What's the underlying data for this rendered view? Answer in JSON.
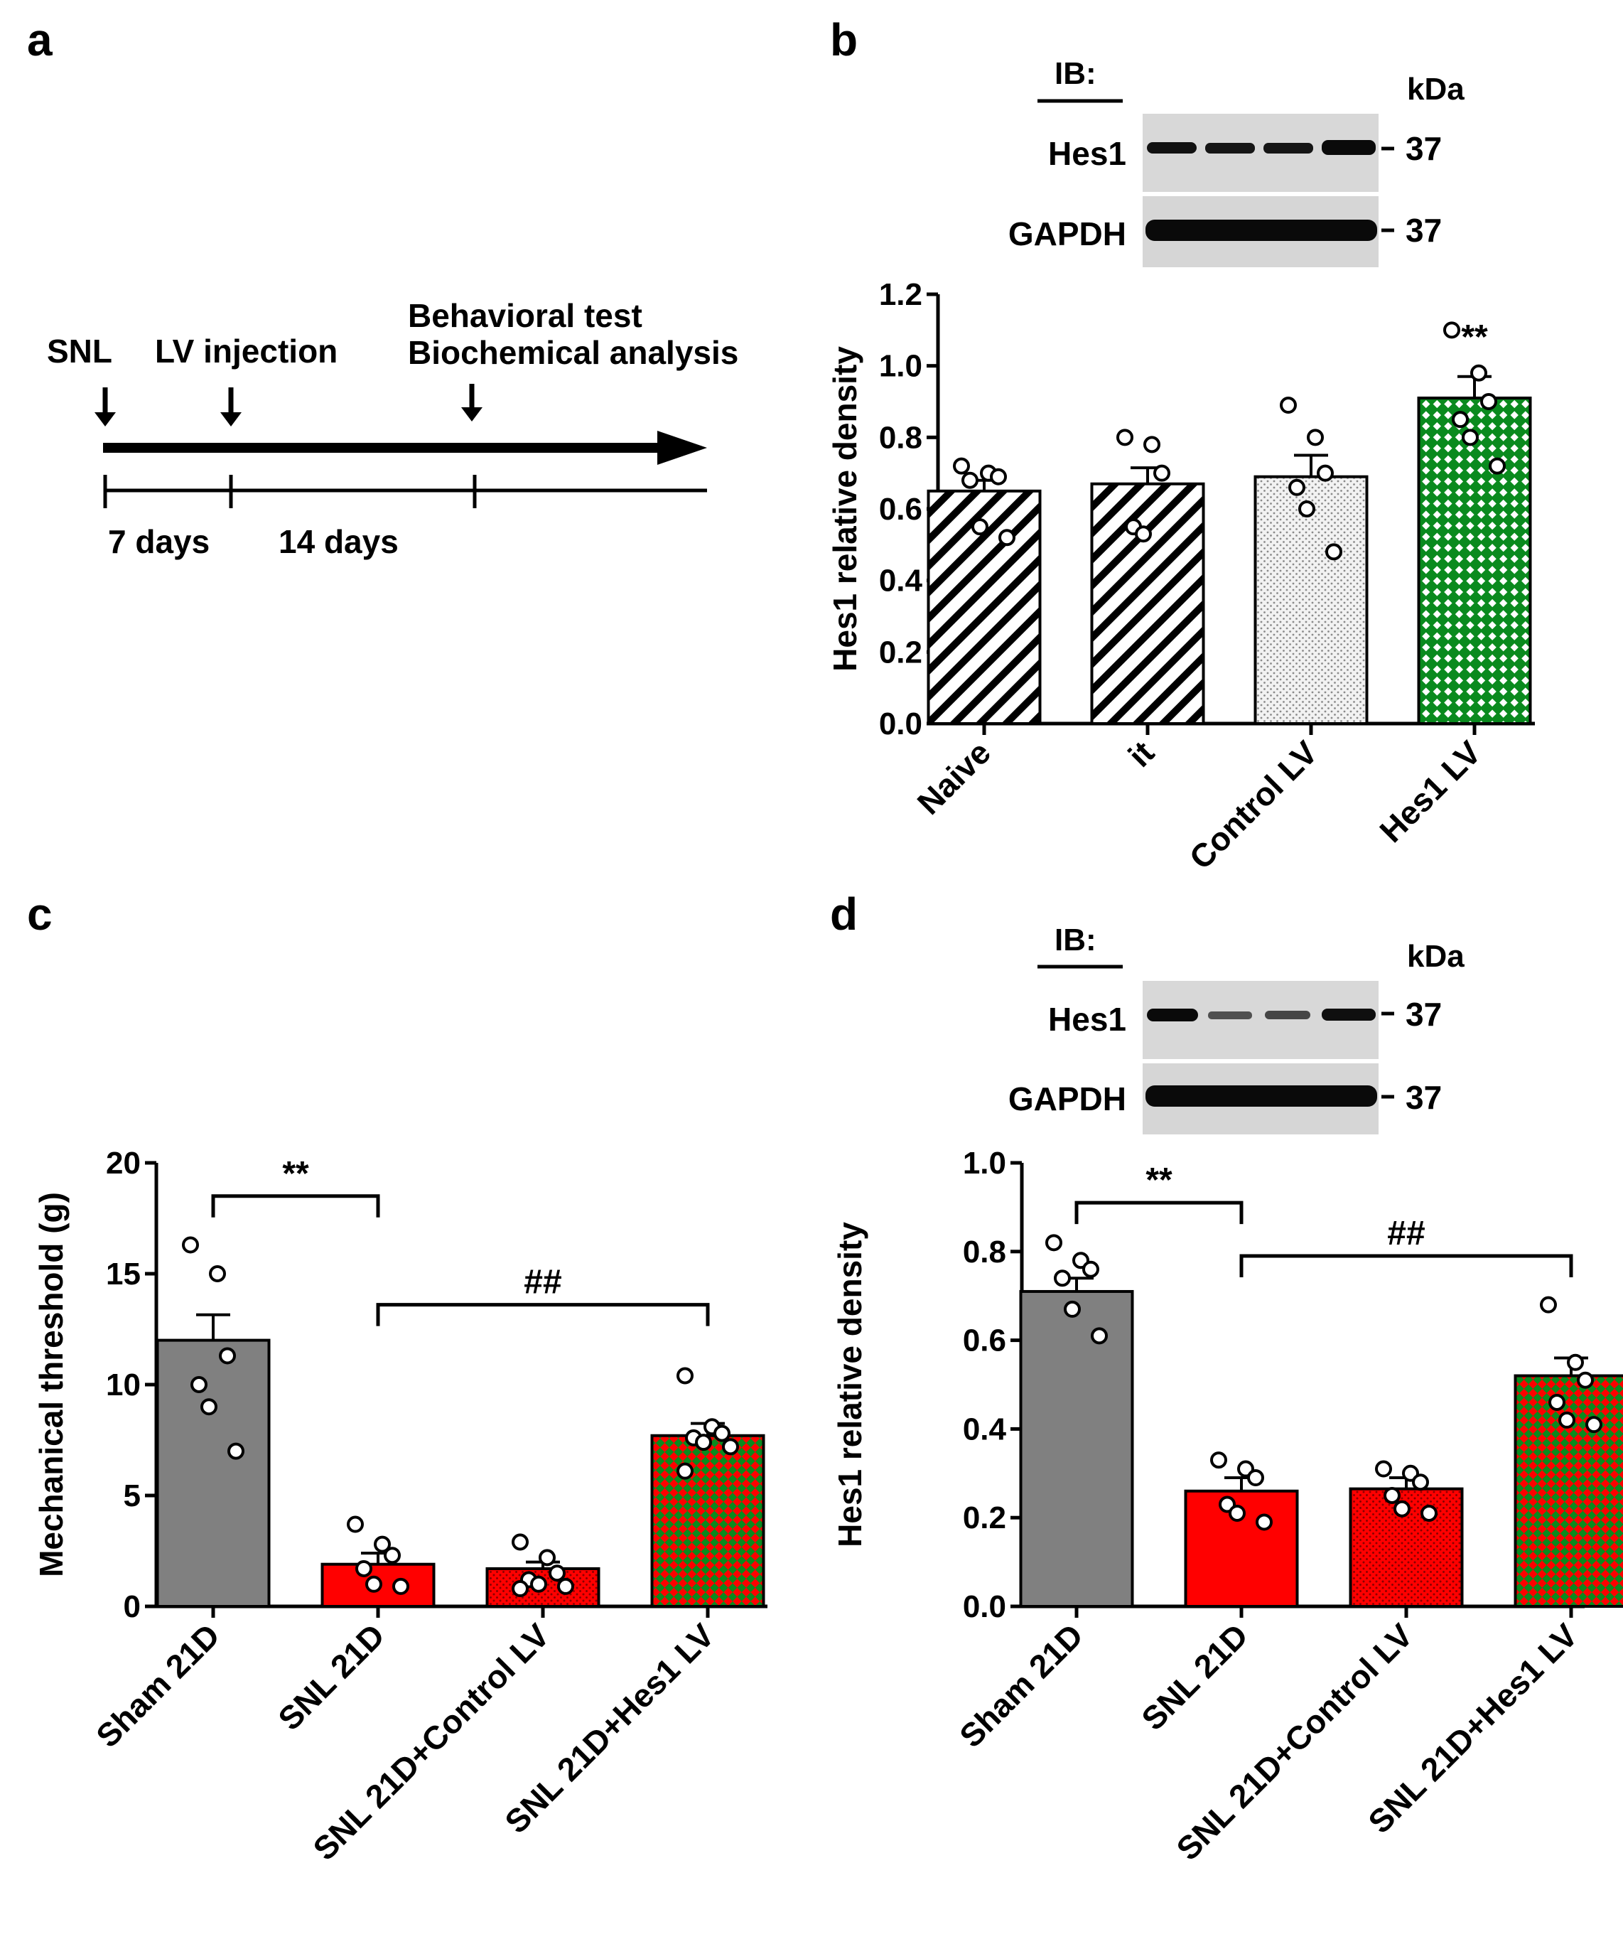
{
  "panels": {
    "a": {
      "letter": "a",
      "events": [
        "SNL",
        "LV injection",
        "Behavioral test",
        "Biochemical analysis"
      ],
      "durations": [
        "7 days",
        "14 days"
      ]
    },
    "b": {
      "letter": "b",
      "blot": {
        "ib": "IB:",
        "kda": "kDa",
        "rows": [
          {
            "label": "Hes1",
            "mw": "37"
          },
          {
            "label": "GAPDH",
            "mw": "37"
          }
        ]
      }
    },
    "c": {
      "letter": "c"
    },
    "d": {
      "letter": "d",
      "blot": {
        "ib": "IB:",
        "kda": "kDa",
        "rows": [
          {
            "label": "Hes1",
            "mw": "37"
          },
          {
            "label": "GAPDH",
            "mw": "37"
          }
        ]
      }
    }
  },
  "colors": {
    "gray": "#808080",
    "red": "#ff0000",
    "green": "#0a8a1e",
    "black": "#000000"
  },
  "chart_data": [
    {
      "panel": "b",
      "type": "bar",
      "ylabel": "Hes1 relative density",
      "ylim": [
        0,
        1.2
      ],
      "yticks": [
        "0.0",
        "0.2",
        "0.4",
        "0.6",
        "0.8",
        "1.0",
        "1.2"
      ],
      "categories": [
        "Naive",
        "it",
        "Control LV",
        "Hes1 LV"
      ],
      "values": [
        0.65,
        0.67,
        0.69,
        0.91
      ],
      "sem": [
        0.03,
        0.045,
        0.06,
        0.06
      ],
      "points": [
        [
          0.72,
          0.7,
          0.69,
          0.68,
          0.55,
          0.52
        ],
        [
          0.8,
          0.78,
          0.7,
          0.55,
          0.53
        ],
        [
          0.89,
          0.8,
          0.7,
          0.66,
          0.6,
          0.48
        ],
        [
          1.1,
          0.98,
          0.9,
          0.85,
          0.8,
          0.72
        ]
      ],
      "fills": [
        "hatch",
        "hatch",
        "dots",
        "green-check"
      ],
      "annotations": [
        "",
        "",
        "",
        "**"
      ]
    },
    {
      "panel": "c",
      "type": "bar",
      "ylabel": "Mechanical threshold (g)",
      "ylim": [
        0,
        20
      ],
      "yticks": [
        "0",
        "5",
        "10",
        "15",
        "20"
      ],
      "categories": [
        "Sham 21D",
        "SNL 21D",
        "SNL 21D+Control LV",
        "SNL 21D+Hes1 LV"
      ],
      "values": [
        12.0,
        1.9,
        1.7,
        7.7
      ],
      "sem": [
        1.15,
        0.5,
        0.3,
        0.55
      ],
      "points": [
        [
          16.3,
          15.0,
          11.3,
          10.0,
          9.0,
          7.0
        ],
        [
          3.7,
          2.8,
          2.3,
          1.7,
          1.0,
          0.9
        ],
        [
          2.9,
          2.2,
          1.5,
          1.2,
          1.0,
          0.9,
          0.8
        ],
        [
          10.4,
          8.1,
          7.8,
          7.6,
          7.4,
          7.2,
          6.1
        ]
      ],
      "fills": [
        "gray",
        "red",
        "red-dots",
        "red-green-check"
      ],
      "significance": [
        {
          "from": 0,
          "to": 1,
          "y": 18.5,
          "label": "**"
        },
        {
          "from": 1,
          "to": 3,
          "y": 13.6,
          "label": "##"
        }
      ]
    },
    {
      "panel": "d",
      "type": "bar",
      "ylabel": "Hes1 relative density",
      "ylim": [
        0,
        1.0
      ],
      "yticks": [
        "0.0",
        "0.2",
        "0.4",
        "0.6",
        "0.8",
        "1.0"
      ],
      "categories": [
        "Sham 21D",
        "SNL 21D",
        "SNL 21D+Control LV",
        "SNL 21D+Hes1 LV"
      ],
      "values": [
        0.71,
        0.26,
        0.265,
        0.52
      ],
      "sem": [
        0.03,
        0.03,
        0.025,
        0.04
      ],
      "points": [
        [
          0.82,
          0.78,
          0.76,
          0.74,
          0.67,
          0.61
        ],
        [
          0.33,
          0.31,
          0.29,
          0.23,
          0.21,
          0.19
        ],
        [
          0.31,
          0.3,
          0.28,
          0.25,
          0.22,
          0.21
        ],
        [
          0.68,
          0.55,
          0.51,
          0.46,
          0.42,
          0.41
        ]
      ],
      "fills": [
        "gray",
        "red",
        "red-dots",
        "red-green-check"
      ],
      "significance": [
        {
          "from": 0,
          "to": 1,
          "y": 0.91,
          "label": "**"
        },
        {
          "from": 1,
          "to": 3,
          "y": 0.79,
          "label": "##"
        }
      ]
    }
  ]
}
